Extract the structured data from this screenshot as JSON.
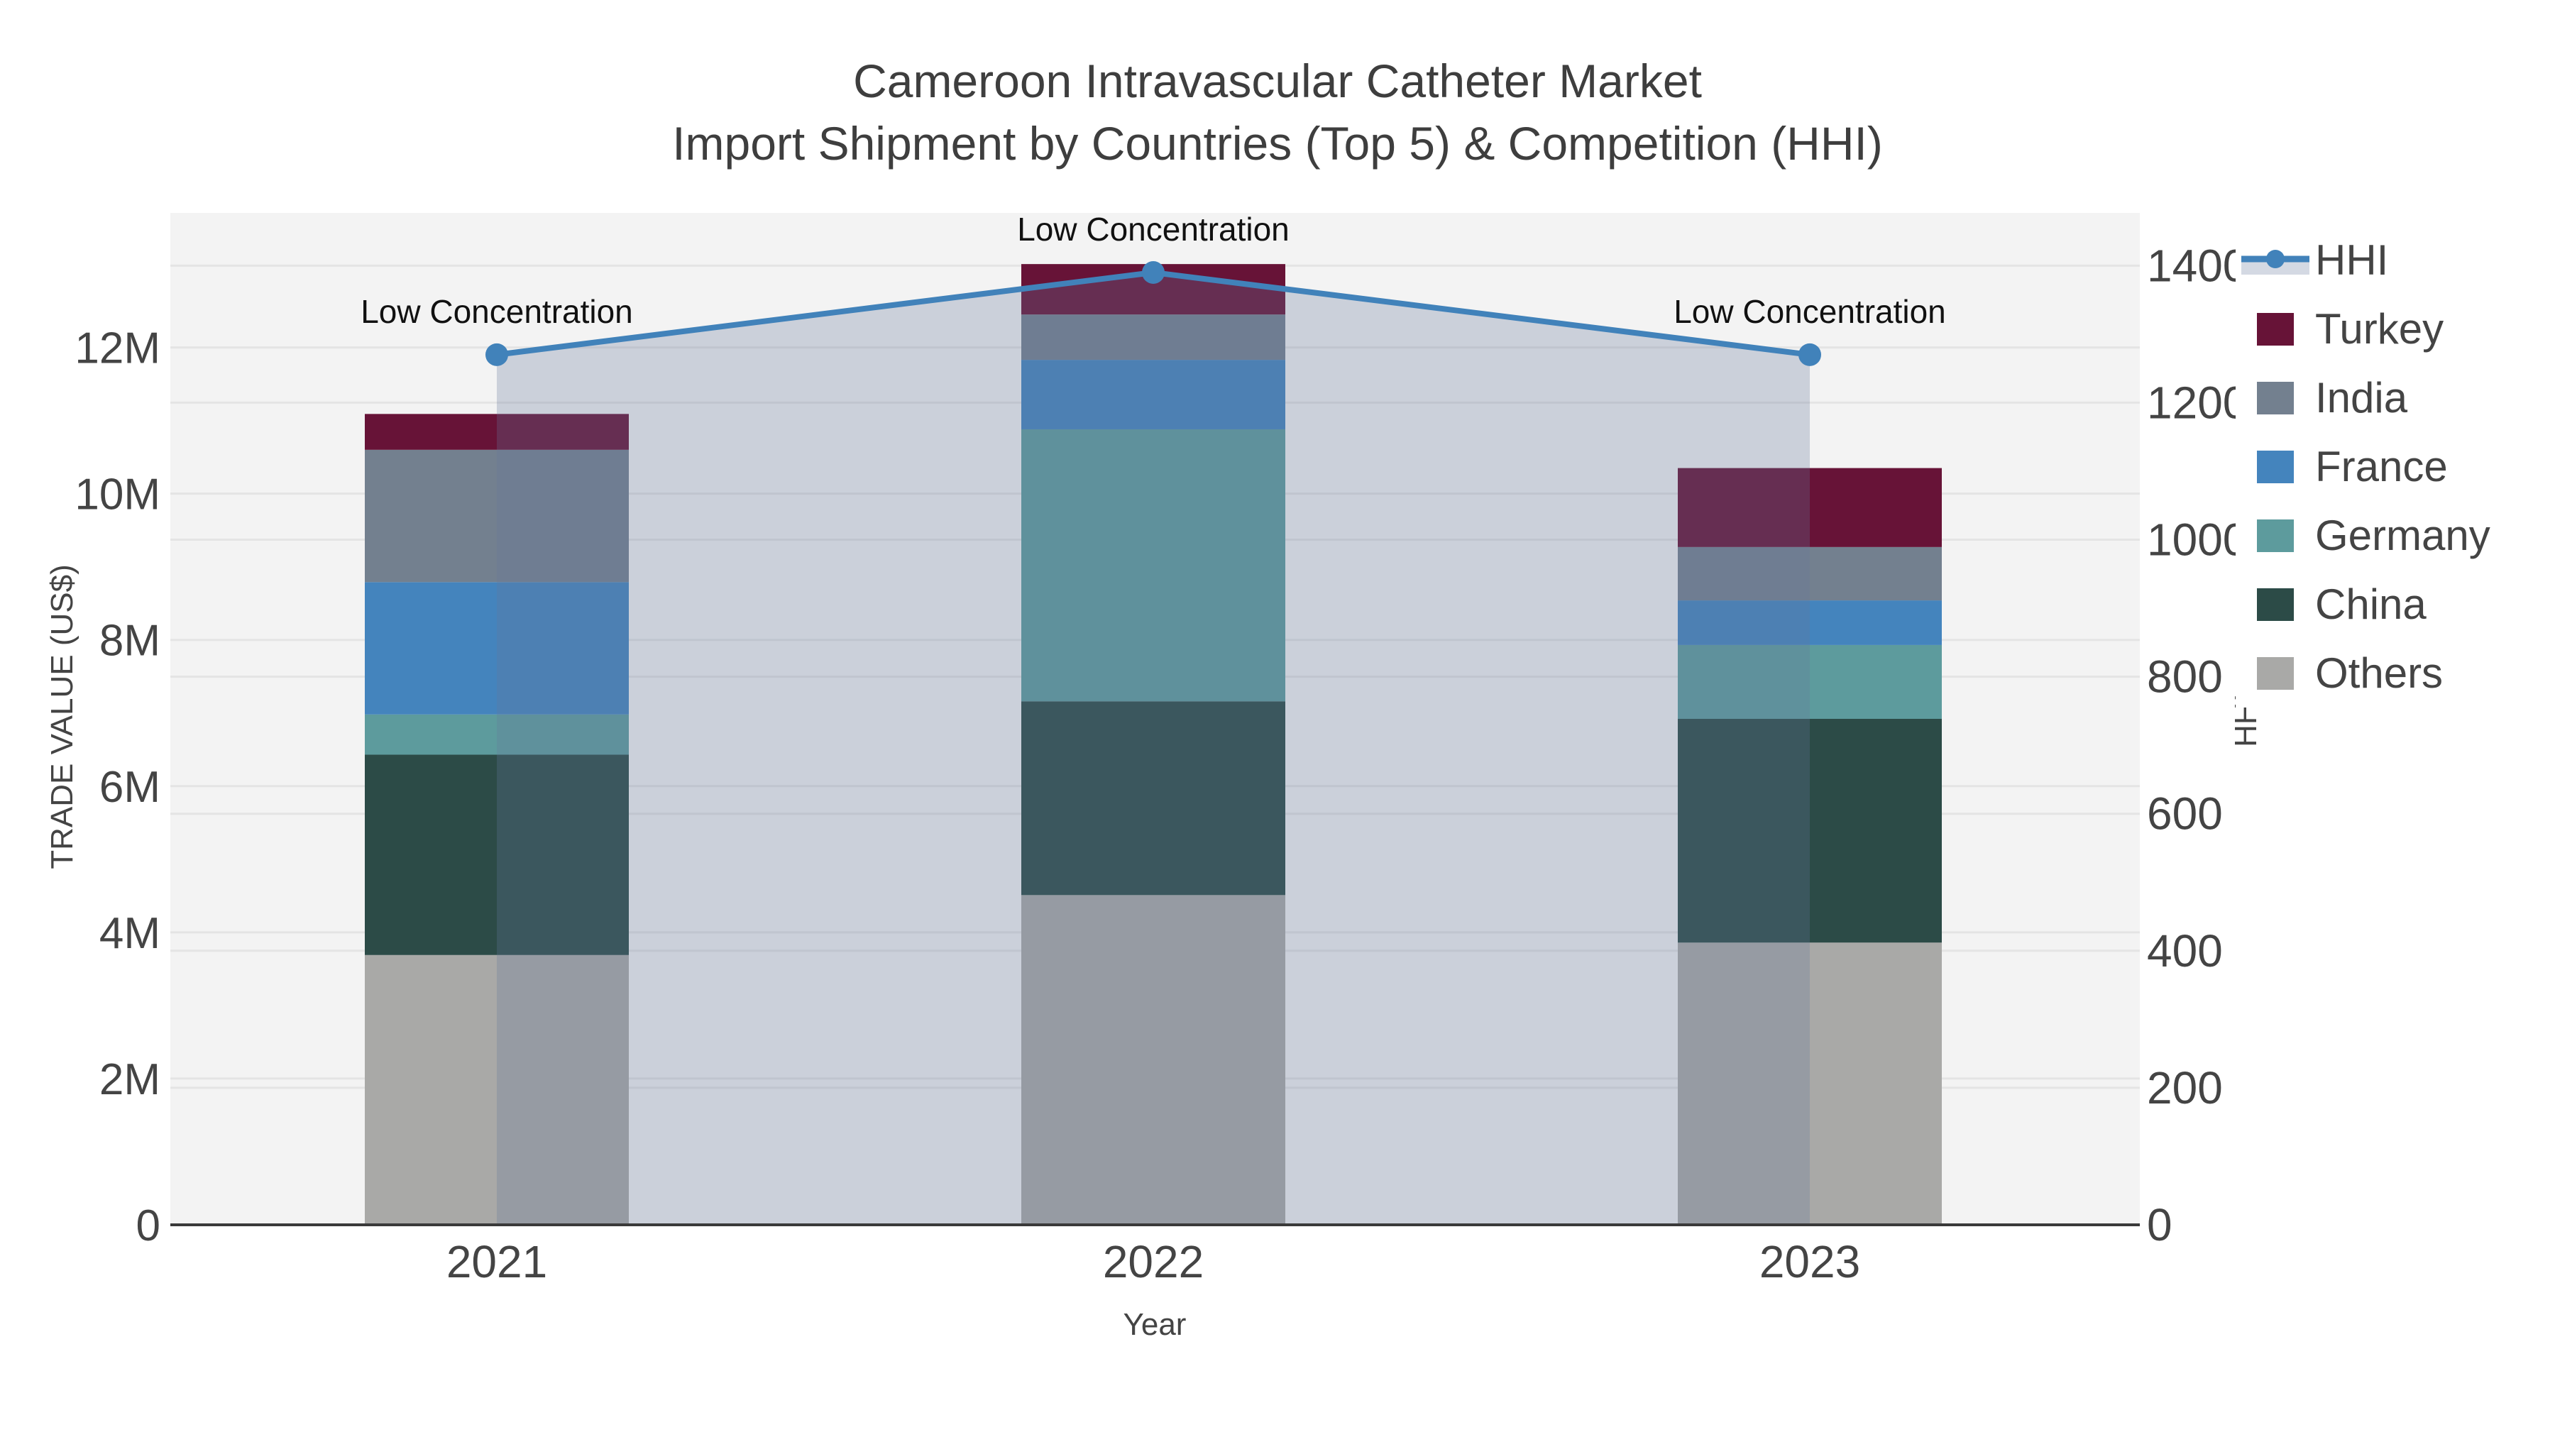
{
  "title": {
    "line1": "Cameroon Intravascular Catheter Market",
    "line2": "Import Shipment by Countries (Top 5) & Competition (HHI)"
  },
  "chart_data": {
    "type": "bar",
    "barmode": "stacked",
    "categories": [
      "2021",
      "2022",
      "2023"
    ],
    "values_unit": "millions US$",
    "series": [
      {
        "name": "Others",
        "color": "#a9a9a7",
        "values": [
          3.69,
          4.51,
          3.86
        ]
      },
      {
        "name": "China",
        "color": "#2c4b47",
        "values": [
          2.74,
          2.65,
          3.06
        ]
      },
      {
        "name": "Germany",
        "color": "#5d9b9d",
        "values": [
          0.55,
          3.72,
          1.01
        ]
      },
      {
        "name": "France",
        "color": "#4484bd",
        "values": [
          1.81,
          0.95,
          0.61
        ]
      },
      {
        "name": "India",
        "color": "#73808f",
        "values": [
          1.81,
          0.62,
          0.73
        ]
      },
      {
        "name": "Turkey",
        "color": "#671337",
        "values": [
          0.49,
          0.69,
          1.08
        ]
      }
    ],
    "line_series": {
      "name": "HHI",
      "axis": "right",
      "color": "#4182ba",
      "area_fill": "rgba(100,120,155,0.28)",
      "values": [
        1270,
        1390,
        1270
      ]
    },
    "annotations": [
      "Low Concentration",
      "Low Concentration",
      "Low Concentration"
    ],
    "xlabel": "Year",
    "ylabel_left": "TRADE VALUE (US$)",
    "ylabel_right": "HHI",
    "yticks_left": [
      {
        "value": 0,
        "label": "0"
      },
      {
        "value": 2,
        "label": "2M"
      },
      {
        "value": 4,
        "label": "4M"
      },
      {
        "value": 6,
        "label": "6M"
      },
      {
        "value": 8,
        "label": "8M"
      },
      {
        "value": 10,
        "label": "10M"
      },
      {
        "value": 12,
        "label": "12M"
      }
    ],
    "yticks_right": [
      {
        "value": 0,
        "label": "0"
      },
      {
        "value": 200,
        "label": "200"
      },
      {
        "value": 400,
        "label": "400"
      },
      {
        "value": 600,
        "label": "600"
      },
      {
        "value": 800,
        "label": "800"
      },
      {
        "value": 1000,
        "label": "1000"
      },
      {
        "value": 1200,
        "label": "1200"
      },
      {
        "value": 1400,
        "label": "1400"
      }
    ],
    "ylim_left": [
      0,
      13.84
    ],
    "ylim_right": [
      0,
      1477
    ],
    "grid": true,
    "legend_position": "right"
  },
  "legend": {
    "items": [
      {
        "label": "HHI",
        "type": "line",
        "color": "#4182ba"
      },
      {
        "label": "Turkey",
        "type": "rect",
        "color": "#671337"
      },
      {
        "label": "India",
        "type": "rect",
        "color": "#73808f"
      },
      {
        "label": "France",
        "type": "rect",
        "color": "#4484bd"
      },
      {
        "label": "Germany",
        "type": "rect",
        "color": "#5d9b9d"
      },
      {
        "label": "China",
        "type": "rect",
        "color": "#2c4b47"
      },
      {
        "label": "Others",
        "type": "rect",
        "color": "#a9a9a7"
      }
    ]
  },
  "colors": {
    "plot_bg": "#f3f3f3",
    "gridline": "#e4e4e4",
    "axis_line": "#3a3a3a",
    "tick_text": "#444444",
    "annotation_text": "#111111",
    "legend_band": "#d4d9e3"
  }
}
